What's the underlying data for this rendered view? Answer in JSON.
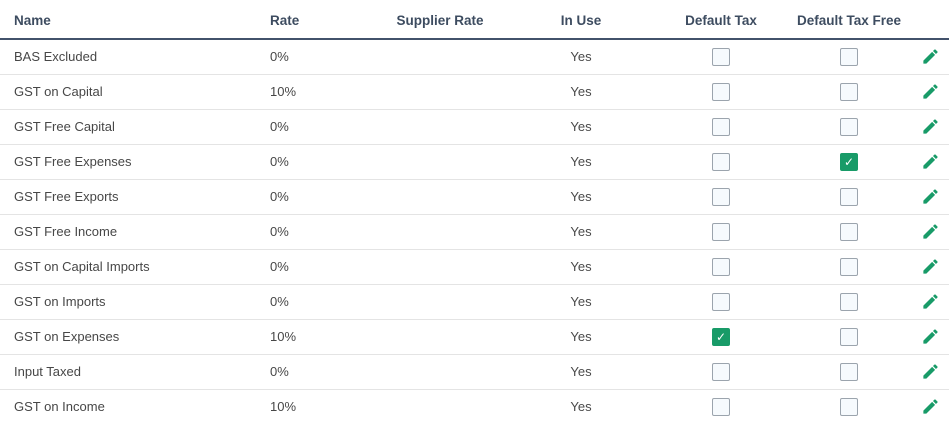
{
  "colors": {
    "header_text": "#3d4c60",
    "header_border": "#42526b",
    "row_border": "#e4e4e4",
    "body_text": "#474747",
    "checkbox_border": "#9ba4ad",
    "checkbox_bg": "#f6fafd",
    "accent_green": "#189b68"
  },
  "icons": {
    "edit": "pencil-icon",
    "checkmark": "✓"
  },
  "table": {
    "columns": [
      {
        "label": "Name",
        "align": "left"
      },
      {
        "label": "Rate",
        "align": "left"
      },
      {
        "label": "Supplier Rate",
        "align": "center"
      },
      {
        "label": "In Use",
        "align": "center"
      },
      {
        "label": "Default Tax",
        "align": "center"
      },
      {
        "label": "Default Tax Free",
        "align": "center"
      },
      {
        "label": "",
        "align": "center"
      }
    ],
    "rows": [
      {
        "name": "BAS Excluded",
        "rate": "0%",
        "supplier_rate": "",
        "in_use": "Yes",
        "default_tax": false,
        "default_tax_free": false
      },
      {
        "name": "GST on Capital",
        "rate": "10%",
        "supplier_rate": "",
        "in_use": "Yes",
        "default_tax": false,
        "default_tax_free": false
      },
      {
        "name": "GST Free Capital",
        "rate": "0%",
        "supplier_rate": "",
        "in_use": "Yes",
        "default_tax": false,
        "default_tax_free": false
      },
      {
        "name": "GST Free Expenses",
        "rate": "0%",
        "supplier_rate": "",
        "in_use": "Yes",
        "default_tax": false,
        "default_tax_free": true
      },
      {
        "name": "GST Free Exports",
        "rate": "0%",
        "supplier_rate": "",
        "in_use": "Yes",
        "default_tax": false,
        "default_tax_free": false
      },
      {
        "name": "GST Free Income",
        "rate": "0%",
        "supplier_rate": "",
        "in_use": "Yes",
        "default_tax": false,
        "default_tax_free": false
      },
      {
        "name": "GST on Capital Imports",
        "rate": "0%",
        "supplier_rate": "",
        "in_use": "Yes",
        "default_tax": false,
        "default_tax_free": false
      },
      {
        "name": "GST on Imports",
        "rate": "0%",
        "supplier_rate": "",
        "in_use": "Yes",
        "default_tax": false,
        "default_tax_free": false
      },
      {
        "name": "GST on Expenses",
        "rate": "10%",
        "supplier_rate": "",
        "in_use": "Yes",
        "default_tax": true,
        "default_tax_free": false
      },
      {
        "name": "Input Taxed",
        "rate": "0%",
        "supplier_rate": "",
        "in_use": "Yes",
        "default_tax": false,
        "default_tax_free": false
      },
      {
        "name": "GST on Income",
        "rate": "10%",
        "supplier_rate": "",
        "in_use": "Yes",
        "default_tax": false,
        "default_tax_free": false
      }
    ]
  }
}
